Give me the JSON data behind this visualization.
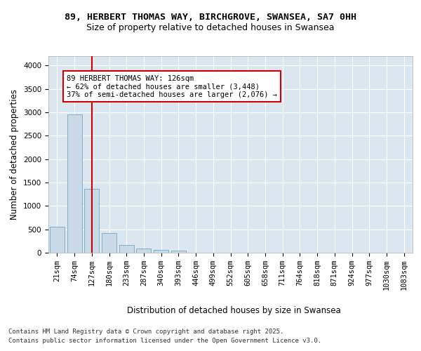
{
  "title_line1": "89, HERBERT THOMAS WAY, BIRCHGROVE, SWANSEA, SA7 0HH",
  "title_line2": "Size of property relative to detached houses in Swansea",
  "xlabel": "Distribution of detached houses by size in Swansea",
  "ylabel": "Number of detached properties",
  "categories": [
    "21sqm",
    "74sqm",
    "127sqm",
    "180sqm",
    "233sqm",
    "287sqm",
    "340sqm",
    "393sqm",
    "446sqm",
    "499sqm",
    "552sqm",
    "605sqm",
    "658sqm",
    "711sqm",
    "764sqm",
    "818sqm",
    "871sqm",
    "924sqm",
    "977sqm",
    "1030sqm",
    "1083sqm"
  ],
  "values": [
    550,
    2960,
    1360,
    415,
    160,
    95,
    55,
    40,
    0,
    0,
    0,
    0,
    0,
    0,
    0,
    0,
    0,
    0,
    0,
    0,
    0
  ],
  "bar_color": "#c9d9e8",
  "bar_edge_color": "#7aafc8",
  "vline_x": 2,
  "vline_color": "#cc0000",
  "annotation_text": "89 HERBERT THOMAS WAY: 126sqm\n← 62% of detached houses are smaller (3,448)\n37% of semi-detached houses are larger (2,076) →",
  "annotation_box_color": "#ffffff",
  "annotation_box_edgecolor": "#cc0000",
  "ylim": [
    0,
    4200
  ],
  "yticks": [
    0,
    500,
    1000,
    1500,
    2000,
    2500,
    3000,
    3500,
    4000
  ],
  "plot_bg_color": "#dce6f0",
  "grid_color": "#ffffff",
  "footer_line1": "Contains HM Land Registry data © Crown copyright and database right 2025.",
  "footer_line2": "Contains public sector information licensed under the Open Government Licence v3.0.",
  "title_fontsize": 9.5,
  "subtitle_fontsize": 9,
  "label_fontsize": 8.5,
  "tick_fontsize": 7.5,
  "annotation_fontsize": 7.5,
  "footer_fontsize": 6.5
}
